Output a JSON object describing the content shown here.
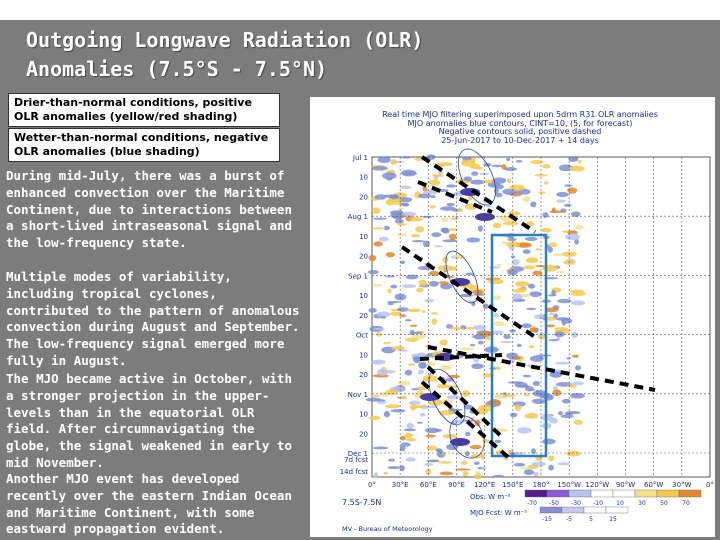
{
  "slide": {
    "title_line1": "Outgoing Longwave Radiation (OLR)",
    "title_line2": "Anomalies (7.5°S - 7.5°N)"
  },
  "legend": {
    "drier": "Drier-than-normal conditions, positive OLR anomalies (yellow/red shading)",
    "wetter": "Wetter-than-normal conditions, negative OLR anomalies (blue shading)"
  },
  "paragraphs": [
    "During mid-July, there was a burst of enhanced convection over the Maritime Continent, due to interactions between a short-lived intraseasonal signal and the low-frequency state.",
    "Multiple modes of variability, including tropical cyclones, contributed to the pattern of anomalous convection during August and September. The low-frequency signal emerged more fully in August.",
    "The MJO became active in October, with a stronger projection in the upper-levels than in the equatorial OLR field. After circumnavigating the globe, the signal weakened in early to mid November.",
    "Another MJO event has developed recently over the eastern Indian Ocean and Maritime Continent, with some eastward propagation evident."
  ],
  "figure": {
    "header_line1": "Real time MJO filtering superimposed upon 5drm R31 OLR anomalies",
    "header_line2": "MJO anomalies blue contours, CINT=10, (5, for forecast)",
    "header_line3": "Negative contours solid, positive dashed",
    "header_line4": "25-Jun-2017 to 10-Dec-2017 + 14 days",
    "y_labels": [
      "Jul 1",
      "10",
      "20",
      "Aug 1",
      "10",
      "20",
      "Sep 1",
      "10",
      "20",
      "Oct",
      "10",
      "20",
      "Nov 1",
      "10",
      "20",
      "Dec 1",
      "7d fcst",
      "14d fcst"
    ],
    "x_labels": [
      "0°",
      "30°E",
      "60°E",
      "90°E",
      "120°E",
      "150°E",
      "180°",
      "150°W",
      "120°W",
      "90°W",
      "60°W",
      "30°W",
      "0°"
    ],
    "lat_range": "7.5S-7.5N",
    "obs_label": "Obs: W m⁻²",
    "obs_ticks": [
      "-70",
      "-50",
      "-30",
      "-10",
      "10",
      "30",
      "50",
      "70"
    ],
    "mjo_label": "MJO Fcst: W m⁻²",
    "mjo_ticks": [
      "-15",
      "-5",
      "5",
      "15"
    ],
    "credit": "MV - Bureau of Meteorology",
    "colors": {
      "box": "#2a7fbf",
      "negative": "#7b8fd6",
      "positive": "#f5c94a"
    }
  }
}
